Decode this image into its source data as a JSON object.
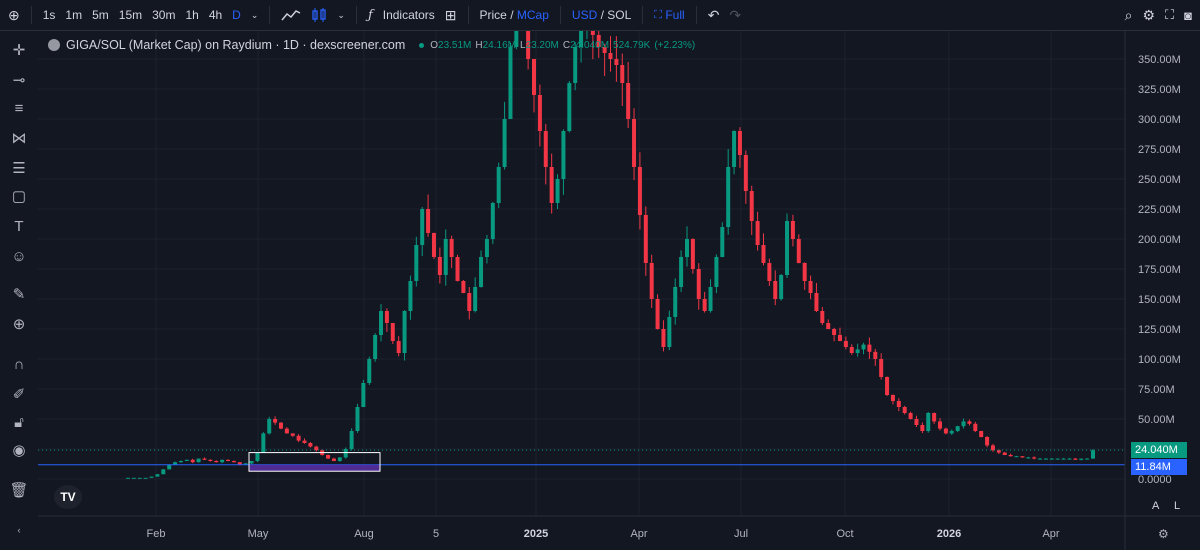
{
  "toolbar": {
    "add_icon": "plus-circle-icon",
    "intervals": [
      "1s",
      "1m",
      "5m",
      "15m",
      "30m",
      "1h",
      "4h",
      "D"
    ],
    "active_interval": "D",
    "indicators_label": "Indicators",
    "price_label": "Price",
    "slash1": "/",
    "mcap_label": "MCap",
    "usd_label": "USD",
    "slash2": "/",
    "sol_label": "SOL",
    "full_label": "Full"
  },
  "legend": {
    "title": "GIGA/SOL (Market Cap) on Raydium · 1D · dexscreener.com",
    "o_label": "O",
    "o": "23.51M",
    "h_label": "H",
    "h": "24.16M",
    "l_label": "L",
    "l": "23.20M",
    "c_label": "C",
    "c": "24.040M",
    "volume": "524.79K",
    "change": "(+2.23%)"
  },
  "price_badges": {
    "last": "24.040M",
    "line": "11.84M"
  },
  "corner": {
    "a": "A",
    "l": "L"
  },
  "colors": {
    "up": "#089981",
    "down": "#f23645",
    "line": "#2962ff",
    "box": "#ffffff",
    "box_fill": "#5b2fa8"
  },
  "chart_data": {
    "type": "candlestick",
    "title": "GIGA/SOL (Market Cap) on Raydium · 1D · dexscreener.com",
    "y_unit": "USD market cap",
    "ylim": [
      0,
      370000000
    ],
    "y_ticks": [
      "0.0000",
      "25.00M",
      "50.00M",
      "75.00M",
      "100.00M",
      "125.00M",
      "150.00M",
      "175.00M",
      "200.00M",
      "225.00M",
      "250.00M",
      "275.00M",
      "300.00M",
      "325.00M",
      "350.00M"
    ],
    "x_ticks": [
      "Feb",
      "May",
      "Aug",
      "5",
      "2025",
      "Apr",
      "Jul",
      "Oct",
      "2026",
      "Apr"
    ],
    "bold_ticks": [
      "2025",
      "2026"
    ],
    "horizontal_line": 11840000,
    "last_price": 24040000,
    "ohlc_legend": {
      "open": 23510000,
      "high": 24160000,
      "low": 23200000,
      "close": 24040000
    },
    "series": [
      {
        "values_m": [
          1,
          1,
          1,
          1,
          2,
          4,
          8,
          12,
          14,
          15,
          16,
          14,
          17,
          16,
          15,
          14,
          16,
          15,
          14,
          12,
          13,
          15,
          22,
          38,
          50,
          47,
          42,
          38,
          36,
          32,
          30,
          27,
          24,
          20,
          17,
          15,
          18,
          25,
          40,
          60,
          80,
          100,
          120,
          140,
          130,
          115,
          105,
          140,
          165,
          195,
          225,
          205,
          185,
          170,
          200,
          185,
          165,
          155,
          140,
          160,
          185,
          200,
          230,
          260,
          300,
          360,
          385,
          380,
          350,
          320,
          290,
          260,
          230,
          250,
          290,
          330,
          360,
          375,
          380,
          370,
          360,
          355,
          350,
          345,
          330,
          300,
          260,
          220,
          180,
          150,
          125,
          110,
          135,
          160,
          185,
          200,
          175,
          150,
          140,
          160,
          185,
          210,
          260,
          290,
          270,
          240,
          215,
          195,
          180,
          165,
          150,
          170,
          215,
          200,
          180,
          165,
          155,
          140,
          130,
          125,
          120,
          115,
          110,
          105,
          108,
          112,
          106,
          100,
          85,
          70,
          65,
          60,
          55,
          50,
          45,
          40,
          55,
          48,
          42,
          38,
          40,
          44,
          48,
          46,
          40,
          35,
          28,
          24,
          22,
          20,
          19,
          19,
          18,
          18,
          17,
          17,
          17,
          17,
          17,
          17,
          17,
          16,
          17,
          17,
          24
        ]
      }
    ]
  }
}
